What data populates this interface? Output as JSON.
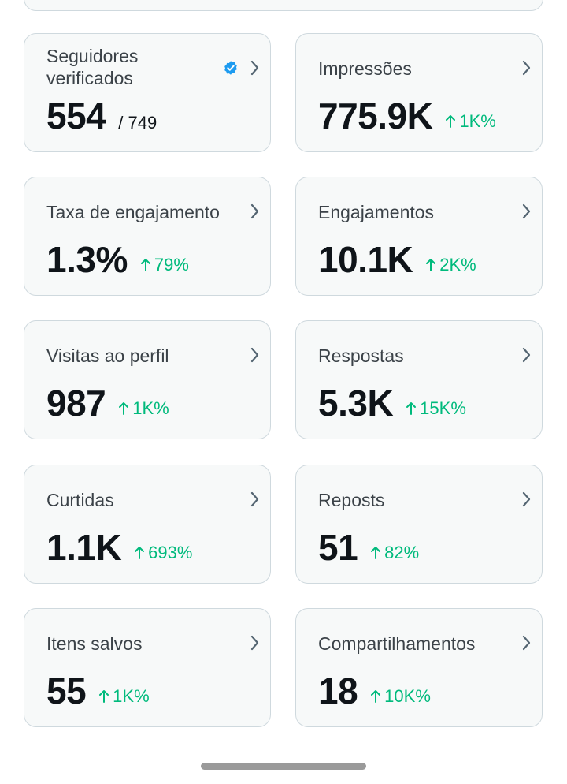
{
  "cards": [
    {
      "id": "verified-followers",
      "title": "Seguidores verificados",
      "value": "554",
      "of_total": "/ 749",
      "verified_icon": true
    },
    {
      "id": "impressions",
      "title": "Impressões",
      "value": "775.9K",
      "change": "1K%"
    },
    {
      "id": "engagement-rate",
      "title": "Taxa de engajamento",
      "value": "1.3%",
      "change": "79%"
    },
    {
      "id": "engagements",
      "title": "Engajamentos",
      "value": "10.1K",
      "change": "2K%"
    },
    {
      "id": "profile-visits",
      "title": "Visitas ao perfil",
      "value": "987",
      "change": "1K%"
    },
    {
      "id": "replies",
      "title": "Respostas",
      "value": "5.3K",
      "change": "15K%"
    },
    {
      "id": "likes",
      "title": "Curtidas",
      "value": "1.1K",
      "change": "693%"
    },
    {
      "id": "reposts",
      "title": "Reposts",
      "value": "51",
      "change": "82%"
    },
    {
      "id": "bookmarks",
      "title": "Itens salvos",
      "value": "55",
      "change": "1K%"
    },
    {
      "id": "shares",
      "title": "Compartilhamentos",
      "value": "18",
      "change": "10K%"
    }
  ],
  "colors": {
    "card_background": "#f7f9f9",
    "card_border": "#cfd9de",
    "positive_change": "#00ba7c",
    "verified_badge": "#1d9bf0",
    "chevron": "#536471"
  },
  "icons": {
    "chevron": "chevron-right-icon",
    "trend": "arrow-up-icon",
    "verified": "verified-badge-icon"
  }
}
